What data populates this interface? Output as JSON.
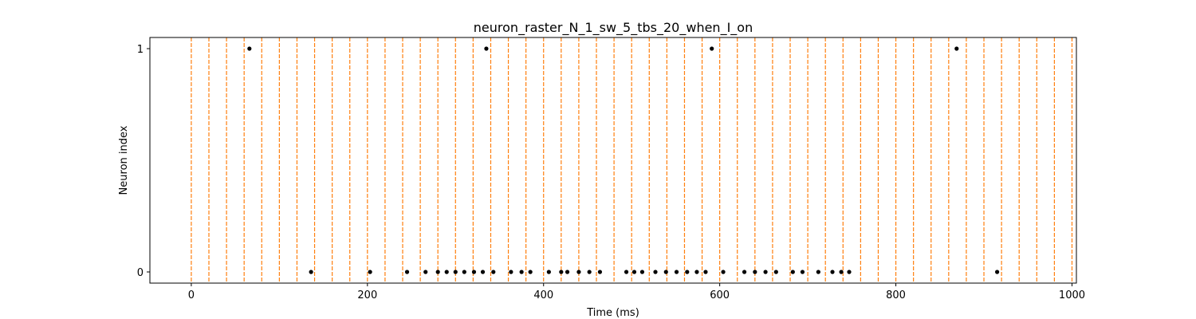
{
  "chart_data": {
    "type": "scatter",
    "title": "neuron_raster_N_1_sw_5_tbs_20_when_I_on",
    "xlabel": "Time (ms)",
    "ylabel": "Neuron index",
    "xlim": [
      -47,
      1005
    ],
    "ylim": [
      -0.05,
      1.05
    ],
    "x_ticks": [
      0,
      200,
      400,
      600,
      800,
      1000
    ],
    "y_ticks": [
      0,
      1
    ],
    "grid": false,
    "marker_color": "#000000",
    "vline_color": "#ff7f0e",
    "vline_style": "dashed",
    "vlines_x": [
      0,
      20,
      40,
      60,
      80,
      100,
      120,
      140,
      160,
      180,
      200,
      220,
      240,
      260,
      280,
      300,
      320,
      340,
      360,
      380,
      400,
      420,
      440,
      460,
      480,
      500,
      520,
      540,
      560,
      580,
      600,
      620,
      640,
      660,
      680,
      700,
      720,
      740,
      760,
      780,
      800,
      820,
      840,
      860,
      880,
      900,
      920,
      940,
      960,
      980,
      1000
    ],
    "series": [
      {
        "points": [
          [
            66,
            1
          ],
          [
            335,
            1
          ],
          [
            591,
            1
          ],
          [
            869,
            1
          ],
          [
            136,
            0
          ],
          [
            203,
            0
          ],
          [
            245,
            0
          ],
          [
            266,
            0
          ],
          [
            280,
            0
          ],
          [
            290,
            0
          ],
          [
            300,
            0
          ],
          [
            310,
            0
          ],
          [
            321,
            0
          ],
          [
            331,
            0
          ],
          [
            343,
            0
          ],
          [
            363,
            0
          ],
          [
            375,
            0
          ],
          [
            385,
            0
          ],
          [
            406,
            0
          ],
          [
            420,
            0
          ],
          [
            427,
            0
          ],
          [
            440,
            0
          ],
          [
            452,
            0
          ],
          [
            464,
            0
          ],
          [
            494,
            0
          ],
          [
            503,
            0
          ],
          [
            512,
            0
          ],
          [
            527,
            0
          ],
          [
            539,
            0
          ],
          [
            551,
            0
          ],
          [
            563,
            0
          ],
          [
            574,
            0
          ],
          [
            584,
            0
          ],
          [
            604,
            0
          ],
          [
            628,
            0
          ],
          [
            640,
            0
          ],
          [
            652,
            0
          ],
          [
            664,
            0
          ],
          [
            683,
            0
          ],
          [
            694,
            0
          ],
          [
            712,
            0
          ],
          [
            728,
            0
          ],
          [
            738,
            0
          ],
          [
            747,
            0
          ],
          [
            915,
            0
          ]
        ]
      }
    ]
  }
}
